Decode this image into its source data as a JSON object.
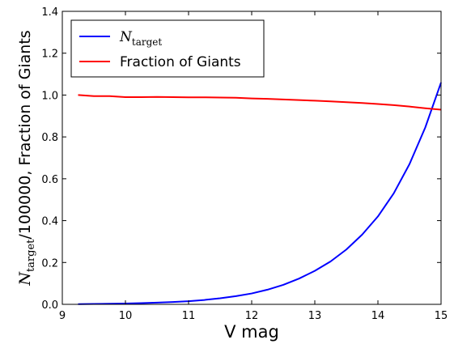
{
  "chart_data": {
    "type": "line",
    "xlabel": "V mag",
    "ylabel": {
      "symbol": "N",
      "subscript": "target",
      "suffix": "/100000, Fraction of Giants"
    },
    "xlim": [
      9,
      15
    ],
    "ylim": [
      0,
      1.4
    ],
    "xticks": [
      9,
      10,
      11,
      12,
      13,
      14,
      15
    ],
    "xtick_labels": [
      "9",
      "10",
      "11",
      "12",
      "13",
      "14",
      "15"
    ],
    "yticks": [
      0,
      0.2,
      0.4,
      0.6,
      0.8,
      1.0,
      1.2,
      1.4
    ],
    "ytick_labels": [
      "0.0",
      "0.2",
      "0.4",
      "0.6",
      "0.8",
      "1.0",
      "1.2",
      "1.4"
    ],
    "grid": false,
    "legend_position": "upper-left",
    "series": [
      {
        "name": "N_target",
        "legend_symbol": "N",
        "legend_subscript": "target",
        "color": "#0000ff",
        "x": [
          9.25,
          9.5,
          9.75,
          10.0,
          10.25,
          10.5,
          10.75,
          11.0,
          11.25,
          11.5,
          11.75,
          12.0,
          12.25,
          12.5,
          12.75,
          13.0,
          13.25,
          13.5,
          13.75,
          14.0,
          14.25,
          14.5,
          14.75,
          15.0
        ],
        "y": [
          0.001,
          0.002,
          0.003,
          0.004,
          0.006,
          0.008,
          0.011,
          0.015,
          0.021,
          0.029,
          0.039,
          0.052,
          0.07,
          0.093,
          0.123,
          0.16,
          0.205,
          0.262,
          0.333,
          0.42,
          0.53,
          0.67,
          0.845,
          1.06
        ]
      },
      {
        "name": "Fraction of Giants",
        "color": "#ff0000",
        "x": [
          9.25,
          9.5,
          9.75,
          10.0,
          10.25,
          10.5,
          10.75,
          11.0,
          11.25,
          11.5,
          11.75,
          12.0,
          12.25,
          12.5,
          12.75,
          13.0,
          13.25,
          13.5,
          13.75,
          14.0,
          14.25,
          14.5,
          14.75,
          15.0
        ],
        "y": [
          1.0,
          0.995,
          0.995,
          0.99,
          0.99,
          0.991,
          0.99,
          0.989,
          0.989,
          0.988,
          0.987,
          0.984,
          0.982,
          0.979,
          0.976,
          0.973,
          0.97,
          0.966,
          0.962,
          0.957,
          0.952,
          0.945,
          0.937,
          0.93
        ]
      }
    ]
  }
}
